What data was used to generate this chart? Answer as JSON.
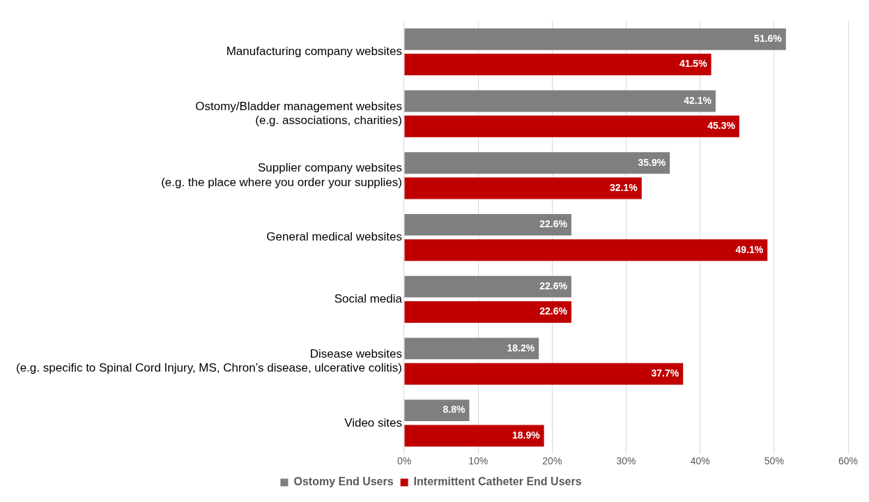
{
  "chart_data": {
    "type": "bar",
    "orientation": "horizontal",
    "categories": [
      "Manufacturing company websites",
      "Ostomy/Bladder management websites\n(e.g. associations, charities)",
      "Supplier company websites\n(e.g. the place where you order your supplies)",
      "General medical websites",
      "Social media",
      "Disease websites\n(e.g. specific to Spinal Cord Injury, MS, Chron’s disease, ulcerative colitis)",
      "Video sites"
    ],
    "series": [
      {
        "name": "Ostomy End Users",
        "color": "#7f7f7f",
        "values": [
          51.6,
          42.1,
          35.9,
          22.6,
          22.6,
          18.2,
          8.8
        ],
        "value_labels": [
          "51.6%",
          "42.1%",
          "35.9%",
          "22.6%",
          "22.6%",
          "18.2%",
          "8.8%"
        ]
      },
      {
        "name": "Intermittent Catheter End Users",
        "color": "#c00000",
        "values": [
          41.5,
          45.3,
          32.1,
          49.1,
          22.6,
          37.7,
          18.9
        ],
        "value_labels": [
          "41.5%",
          "45.3%",
          "32.1%",
          "49.1%",
          "22.6%",
          "37.7%",
          "18.9%"
        ]
      }
    ],
    "xlim": [
      0,
      60
    ],
    "xticks": [
      {
        "value": 0,
        "label": "0%"
      },
      {
        "value": 10,
        "label": "10%"
      },
      {
        "value": 20,
        "label": "20%"
      },
      {
        "value": 30,
        "label": "30%"
      },
      {
        "value": 40,
        "label": "40%"
      },
      {
        "value": 50,
        "label": "50%"
      },
      {
        "value": 60,
        "label": "60%"
      }
    ],
    "grid": "x",
    "legend": "bottom"
  }
}
